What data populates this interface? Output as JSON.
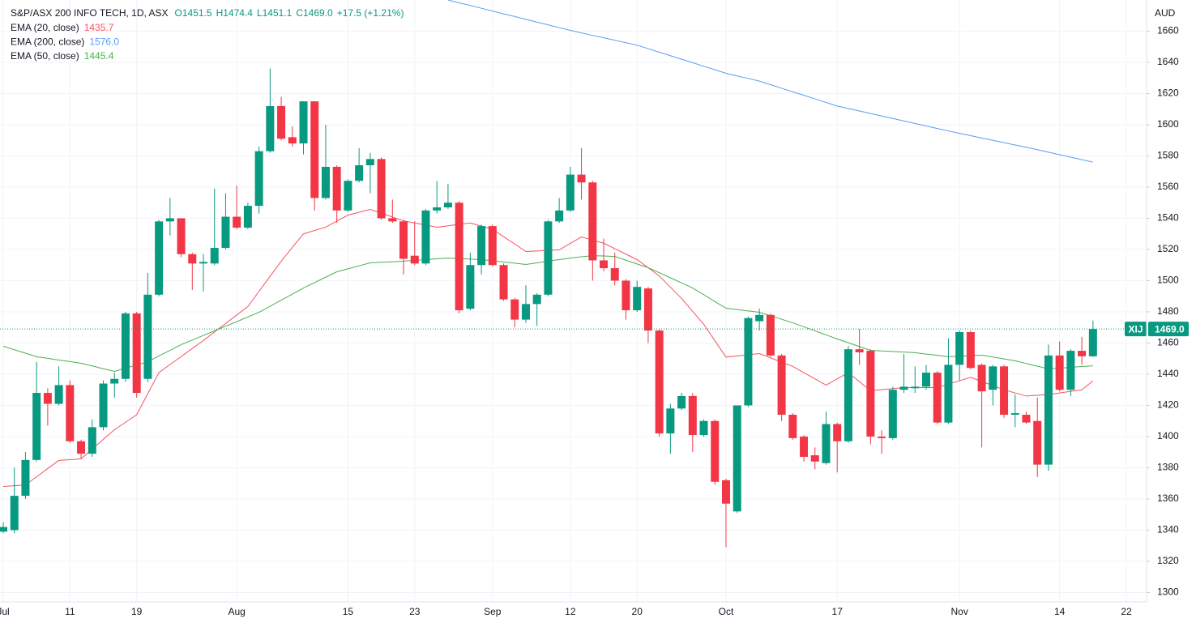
{
  "chart_data": {
    "type": "candlestick",
    "title": "S&P/ASX 200 INFO TECH, 1D, ASX",
    "quote": [
      "O1451.5",
      "H1474.4",
      "L1451.1",
      "C1469.0",
      "+17.5 (+1.21%)"
    ],
    "currency": "AUD",
    "up_color": "#089981",
    "down_color": "#f23645",
    "grid": true,
    "ylim": [
      1294,
      1680
    ],
    "yticks": [
      1300,
      1320,
      1340,
      1360,
      1380,
      1400,
      1420,
      1440,
      1460,
      1480,
      1500,
      1520,
      1540,
      1560,
      1580,
      1600,
      1620,
      1640,
      1660
    ],
    "categories": [
      "Jul",
      null,
      null,
      null,
      null,
      null,
      "11",
      null,
      null,
      null,
      null,
      null,
      "19",
      null,
      null,
      null,
      null,
      null,
      null,
      null,
      null,
      "Aug",
      null,
      null,
      null,
      null,
      null,
      null,
      null,
      null,
      null,
      "15",
      null,
      null,
      null,
      null,
      null,
      "23",
      null,
      null,
      null,
      null,
      null,
      null,
      "Sep",
      null,
      null,
      null,
      null,
      null,
      null,
      "12",
      null,
      null,
      null,
      null,
      null,
      "20",
      null,
      null,
      null,
      null,
      null,
      null,
      null,
      "Oct",
      null,
      null,
      null,
      null,
      null,
      null,
      null,
      null,
      null,
      "17",
      null,
      null,
      null,
      null,
      null,
      null,
      null,
      null,
      null,
      null,
      "Nov",
      null,
      null,
      null,
      null,
      null,
      null,
      null,
      null,
      "14",
      null,
      null,
      null,
      null,
      null,
      "22"
    ],
    "open": [
      1339,
      1340,
      1362,
      1385,
      1428,
      1421,
      1433,
      1397,
      1389,
      1406,
      1434,
      1437,
      1479,
      1437,
      1491,
      1538,
      1540,
      1517,
      1511,
      1511,
      1521,
      1541,
      1534,
      1548,
      1583,
      1612,
      1592,
      1588,
      1615,
      1553,
      1573,
      1545,
      1564,
      1574,
      1578,
      1540,
      1538,
      1516,
      1511,
      1545,
      1547,
      1550,
      1482,
      1510,
      1535,
      1510,
      1488,
      1475,
      1485,
      1491,
      1538,
      1545,
      1568,
      1563,
      1513,
      1508,
      1500,
      1481,
      1495,
      1468,
      1402,
      1418,
      1426,
      1401,
      1410,
      1372,
      1352,
      1420,
      1474,
      1478,
      1452,
      1414,
      1400,
      1388,
      1383,
      1408,
      1397,
      1456,
      1455,
      1400,
      1399,
      1430,
      1431,
      1432,
      1441,
      1409,
      1446,
      1467,
      1446,
      1430,
      1445,
      1414,
      1414,
      1410,
      1382,
      1452,
      1430,
      1455,
      1451.5,
      null,
      null,
      null
    ],
    "high": [
      1345,
      1380,
      1390,
      1448,
      1431,
      1445,
      1436,
      1398,
      1411,
      1436,
      1441,
      1480,
      1480,
      1505,
      1539,
      1553,
      1540,
      1518,
      1517,
      1559,
      1556,
      1561,
      1550,
      1586,
      1636,
      1618,
      1599,
      1615,
      1615,
      1600,
      1574,
      1565,
      1585,
      1582,
      1579,
      1552,
      1539,
      1538,
      1546,
      1564,
      1562,
      1551,
      1518,
      1536,
      1536,
      1511,
      1489,
      1497,
      1492,
      1539,
      1553,
      1573,
      1585,
      1564,
      1527,
      1518,
      1501,
      1500,
      1496,
      1469,
      1421,
      1428,
      1428,
      1411,
      1411,
      1373,
      1420,
      1477,
      1482,
      1479,
      1453,
      1415,
      1401,
      1393,
      1416,
      1409,
      1458,
      1469,
      1456,
      1404,
      1432,
      1453,
      1445,
      1446,
      1442,
      1463,
      1468,
      1468,
      1447,
      1446,
      1446,
      1427,
      1416,
      1425,
      1459,
      1461,
      1456,
      1464,
      1474.4,
      null,
      null,
      null
    ],
    "low": [
      1338,
      1338,
      1360,
      1384,
      1407,
      1420,
      1396,
      1386,
      1387,
      1404,
      1425,
      1435,
      1425,
      1435,
      1490,
      1529,
      1515,
      1494,
      1493,
      1510,
      1520,
      1533,
      1533,
      1543,
      1582,
      1590,
      1586,
      1581,
      1545,
      1552,
      1537,
      1544,
      1563,
      1556,
      1539,
      1537,
      1504,
      1510,
      1510,
      1543,
      1546,
      1479,
      1481,
      1504,
      1509,
      1487,
      1470,
      1473,
      1471,
      1490,
      1537,
      1544,
      1552,
      1500,
      1506,
      1497,
      1475,
      1480,
      1460,
      1400,
      1389,
      1417,
      1390,
      1400,
      1369,
      1329,
      1351,
      1419,
      1468,
      1451,
      1410,
      1398,
      1384,
      1379,
      1382,
      1377,
      1396,
      1446,
      1395,
      1389,
      1398,
      1428,
      1428,
      1430,
      1408,
      1408,
      1436,
      1443,
      1393,
      1420,
      1412,
      1406,
      1408,
      1374,
      1378,
      1429,
      1426,
      1446,
      1451.1,
      null,
      null,
      null
    ],
    "close": [
      1342,
      1362,
      1385,
      1428,
      1421,
      1433,
      1397,
      1389,
      1406,
      1434,
      1437,
      1479,
      1428,
      1491,
      1538,
      1540,
      1517,
      1511,
      1512,
      1521,
      1541,
      1534,
      1548,
      1583,
      1612,
      1591,
      1588,
      1615,
      1553,
      1573,
      1545,
      1564,
      1574,
      1578,
      1540,
      1538,
      1514,
      1511,
      1545,
      1547,
      1550,
      1481,
      1510,
      1535,
      1510,
      1488,
      1475,
      1485,
      1491,
      1538,
      1545,
      1568,
      1563,
      1513,
      1508,
      1500,
      1481,
      1496,
      1468,
      1402,
      1418,
      1426,
      1401,
      1410,
      1371,
      1357,
      1420,
      1476,
      1478,
      1452,
      1414,
      1399,
      1387,
      1384,
      1408,
      1397,
      1456,
      1454,
      1400,
      1399,
      1430,
      1432,
      1432,
      1441,
      1409,
      1446,
      1467,
      1444,
      1429,
      1445,
      1414,
      1415,
      1409,
      1382,
      1452,
      1430,
      1455,
      1451.5,
      1469,
      null,
      null,
      null
    ],
    "series": [
      {
        "name": "EMA (20, close)",
        "color": "#f7525f",
        "last_label": "1435.7",
        "values": [
          1368,
          1368.5,
          1369,
          1374.2,
          1379.5,
          1384.7,
          1385.2,
          1385.7,
          1391.9,
          1398.2,
          1404.4,
          1409.2,
          1414,
          1427.5,
          1441,
          1446.2,
          1451.3,
          1456.5,
          1461.6,
          1467.1,
          1472.5,
          1478,
          1483.4,
          1493.1,
          1502.8,
          1512.5,
          1521.3,
          1530,
          1532.2,
          1534.3,
          1538.2,
          1542,
          1543.9,
          1545.7,
          1543.3,
          1540.8,
          1538.4,
          1537,
          1535.7,
          1534.3,
          1535.2,
          1536.1,
          1537,
          1535,
          1533,
          1528.2,
          1523.5,
          1518.7,
          1519,
          1519.4,
          1519.7,
          1523.9,
          1528,
          1526,
          1524,
          1520.5,
          1517,
          1513.5,
          1508.3,
          1503,
          1495.8,
          1488.6,
          1480.3,
          1472,
          1461.5,
          1451,
          1451.7,
          1452.5,
          1453.2,
          1450.5,
          1447.7,
          1445,
          1441,
          1437,
          1433,
          1437,
          1441,
          1435.2,
          1429.4,
          1430.1,
          1430.7,
          1431.4,
          1431.4,
          1431.4,
          1431.4,
          1433.6,
          1435.8,
          1438,
          1435.3,
          1432.7,
          1430,
          1428,
          1426,
          1426.5,
          1427,
          1428,
          1429,
          1430,
          1435.7,
          null,
          null,
          null
        ]
      },
      {
        "name": "EMA (200, close)",
        "color": "#5b9cf6",
        "last_label": "1576.0",
        "values": [
          null,
          null,
          null,
          null,
          null,
          null,
          null,
          null,
          null,
          null,
          null,
          null,
          null,
          null,
          null,
          null,
          null,
          null,
          null,
          null,
          null,
          null,
          null,
          null,
          null,
          null,
          null,
          null,
          null,
          null,
          null,
          null,
          null,
          null,
          null,
          null,
          null,
          null,
          null,
          null,
          1680,
          1678.2,
          1676.5,
          1674.7,
          1672.9,
          1671.1,
          1669.4,
          1667.6,
          1665.8,
          1664.1,
          1662.3,
          1660.5,
          1658.9,
          1657.3,
          1655.8,
          1654.2,
          1652.6,
          1651,
          1648.8,
          1646.5,
          1644.3,
          1642,
          1639.8,
          1637.5,
          1635.3,
          1633,
          1631.3,
          1629.7,
          1628,
          1625.7,
          1623.4,
          1621.1,
          1618.9,
          1616.6,
          1614.3,
          1612,
          1610.4,
          1608.8,
          1607.2,
          1605.6,
          1604,
          1602.4,
          1600.8,
          1599.2,
          1597.6,
          1596,
          1594.5,
          1593,
          1591.5,
          1590,
          1588.5,
          1587,
          1585.5,
          1584,
          1582.4,
          1580.8,
          1579.2,
          1577.6,
          1576,
          null,
          null,
          null
        ]
      },
      {
        "name": "EMA (50, close)",
        "color": "#4caf50",
        "last_label": "1445.4",
        "values": [
          1458,
          1455.7,
          1453.5,
          1451.2,
          1450.2,
          1449.1,
          1448.1,
          1447,
          1445.3,
          1443.5,
          1441.8,
          1443.9,
          1445.9,
          1448,
          1451.7,
          1455.3,
          1459,
          1461.9,
          1464.9,
          1467.8,
          1470.8,
          1473.7,
          1476.7,
          1479.7,
          1483.6,
          1487.5,
          1491.4,
          1495.3,
          1498.8,
          1502.2,
          1505.7,
          1507.6,
          1509.5,
          1511.4,
          1511.8,
          1512.1,
          1512.5,
          1513,
          1513.5,
          1514,
          1514.5,
          1514.2,
          1513.8,
          1513.5,
          1512.7,
          1512,
          1511.2,
          1510.4,
          1511.4,
          1512.5,
          1513.5,
          1514.5,
          1515.3,
          1516,
          1515.8,
          1515.5,
          1513.1,
          1510.7,
          1508.3,
          1505.1,
          1501.8,
          1498.6,
          1495.3,
          1491,
          1486.6,
          1482.3,
          1481.4,
          1480.6,
          1479.7,
          1477.5,
          1475.2,
          1473,
          1470.4,
          1467.8,
          1465.2,
          1462.6,
          1460.2,
          1457.7,
          1455.3,
          1454.9,
          1454.6,
          1454.2,
          1453.8,
          1452.9,
          1452.1,
          1451.2,
          1451.5,
          1451.9,
          1452.2,
          1451,
          1449.8,
          1448.6,
          1446.9,
          1445.1,
          1443.4,
          1443.9,
          1444.4,
          1444.9,
          1445.4,
          null,
          null,
          null
        ]
      }
    ],
    "last_price": {
      "symbol": "XIJ",
      "value": 1469,
      "label": "1469.0"
    }
  }
}
